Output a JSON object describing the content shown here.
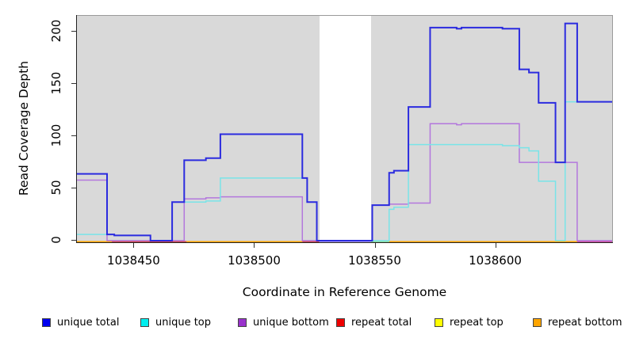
{
  "axes": {
    "x_title": "Coordinate in Reference Genome",
    "y_title": "Read Coverage Depth"
  },
  "legend": {
    "items": [
      {
        "label": "unique total",
        "color": "#0000f0"
      },
      {
        "label": "unique top",
        "color": "#00efef"
      },
      {
        "label": "unique bottom",
        "color": "#9932cc"
      },
      {
        "label": "repeat total",
        "color": "#ee0000"
      },
      {
        "label": "repeat top",
        "color": "#ffff00"
      },
      {
        "label": "repeat bottom",
        "color": "#ffa500"
      }
    ]
  },
  "chart_data": {
    "type": "line",
    "subtype": "step-coverage",
    "title": "",
    "xlabel": "Coordinate in Reference Genome",
    "ylabel": "Read Coverage Depth",
    "xlim": [
      1038426.5,
      1038648.5
    ],
    "ylim": [
      0,
      215
    ],
    "x_ticks": [
      1038450,
      1038500,
      1038550,
      1038600
    ],
    "y_ticks": [
      0,
      50,
      100,
      150,
      200
    ],
    "panel_background": "#d9d9d9",
    "grid": false,
    "legend_position": "bottom",
    "no_data_gap": {
      "from": 1038527,
      "to": 1038548.5
    },
    "series": [
      {
        "name": "unique total",
        "color": "#2b2bdf",
        "width": 2,
        "points": [
          [
            1038426.5,
            64
          ],
          [
            1038439,
            6
          ],
          [
            1038442,
            5
          ],
          [
            1038457,
            0
          ],
          [
            1038466,
            37
          ],
          [
            1038471,
            77
          ],
          [
            1038480,
            79
          ],
          [
            1038486,
            102
          ],
          [
            1038520,
            60
          ],
          [
            1038522,
            37
          ],
          [
            1038526,
            0
          ],
          [
            1038549,
            34
          ],
          [
            1038556,
            65
          ],
          [
            1038558,
            67
          ],
          [
            1038564,
            128
          ],
          [
            1038573,
            204
          ],
          [
            1038584,
            203
          ],
          [
            1038586,
            204
          ],
          [
            1038603,
            203
          ],
          [
            1038610,
            164
          ],
          [
            1038614,
            161
          ],
          [
            1038618,
            132
          ],
          [
            1038625,
            75
          ],
          [
            1038629,
            208
          ],
          [
            1038634,
            133
          ]
        ]
      },
      {
        "name": "unique top",
        "color": "#79e4e8",
        "width": 1.5,
        "points": [
          [
            1038426.5,
            6
          ],
          [
            1038442,
            5
          ],
          [
            1038457,
            0
          ],
          [
            1038466,
            37
          ],
          [
            1038480,
            38
          ],
          [
            1038486,
            60
          ],
          [
            1038522,
            37
          ],
          [
            1038526,
            0
          ],
          [
            1038556,
            30
          ],
          [
            1038558,
            32
          ],
          [
            1038564,
            92
          ],
          [
            1038603,
            91
          ],
          [
            1038610,
            89
          ],
          [
            1038614,
            86
          ],
          [
            1038618,
            57
          ],
          [
            1038625,
            0
          ],
          [
            1038629,
            133
          ]
        ]
      },
      {
        "name": "unique bottom",
        "color": "#b377dd",
        "width": 1.5,
        "points": [
          [
            1038426.5,
            58
          ],
          [
            1038439,
            0
          ],
          [
            1038471,
            40
          ],
          [
            1038480,
            41
          ],
          [
            1038486,
            42
          ],
          [
            1038520,
            0
          ],
          [
            1038549,
            34
          ],
          [
            1038556,
            35
          ],
          [
            1038564,
            36
          ],
          [
            1038573,
            112
          ],
          [
            1038584,
            111
          ],
          [
            1038586,
            112
          ],
          [
            1038610,
            75
          ],
          [
            1038634,
            0
          ]
        ]
      },
      {
        "name": "repeat total",
        "color": "#ee0000",
        "points": [
          [
            1038426.5,
            0
          ]
        ]
      },
      {
        "name": "repeat top",
        "color": "#ffff00",
        "points": [
          [
            1038426.5,
            0
          ]
        ]
      },
      {
        "name": "repeat bottom",
        "color": "#ffa500",
        "points": [
          [
            1038426.5,
            0
          ]
        ]
      }
    ],
    "zero_line_segments": [
      {
        "from": 1038426.5,
        "to": 1038441,
        "color": "#ffa500"
      },
      {
        "from": 1038441,
        "to": 1038472,
        "color": "#d34545"
      },
      {
        "from": 1038472,
        "to": 1038520,
        "color": "#ffa500"
      },
      {
        "from": 1038520,
        "to": 1038527,
        "color": "#d34545"
      },
      {
        "from": 1038527,
        "to": 1038548.5,
        "color": "#b9a6ec"
      },
      {
        "from": 1038548.5,
        "to": 1038556,
        "color": "#8edc9a"
      },
      {
        "from": 1038556,
        "to": 1038634,
        "color": "#ffa500"
      },
      {
        "from": 1038634,
        "to": 1038648.5,
        "color": "#d0509e"
      }
    ]
  }
}
